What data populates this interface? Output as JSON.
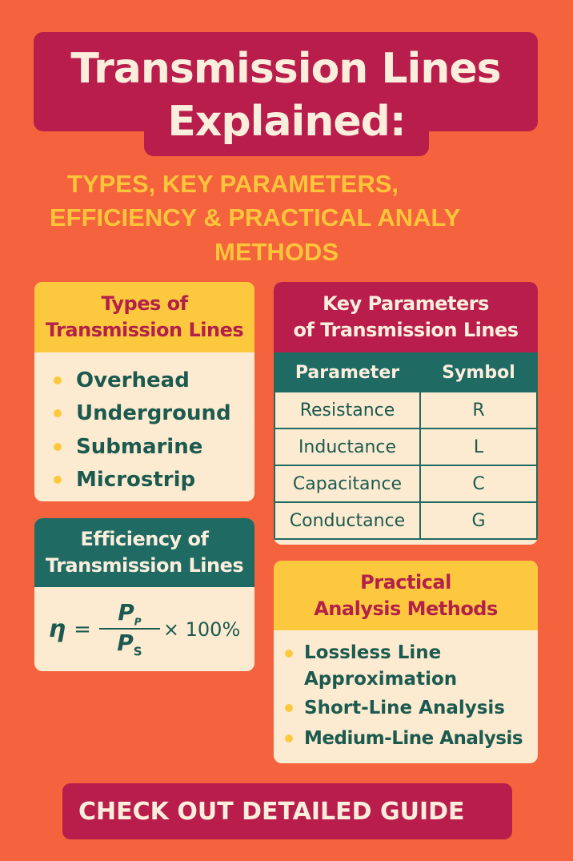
{
  "title": {
    "line1": "Transmission Lines",
    "line2": "Explained:"
  },
  "subtitle": {
    "line1": "TYPES, KEY PARAMETERS,",
    "line2": "EFFICIENCY & PRACTICAL ANALY",
    "line3": "METHODS"
  },
  "types": {
    "heading_line1": "Types of",
    "heading_line2": "Transmission Lines",
    "items": [
      "Overhead",
      "Underground",
      "Submarine",
      "Microstrip"
    ]
  },
  "parameters": {
    "heading_line1": "Key Parameters",
    "heading_line2": "of Transmission Lines",
    "columns": [
      "Parameter",
      "Symbol"
    ],
    "rows": [
      [
        "Resistance",
        "R"
      ],
      [
        "Inductance",
        "L"
      ],
      [
        "Capacitance",
        "C"
      ],
      [
        "Conductance",
        "G"
      ]
    ]
  },
  "efficiency": {
    "heading_line1": "Efficiency of",
    "heading_line2": "Transmission Lines",
    "formula": {
      "lhs": "η",
      "equals": "=",
      "numerator": "P",
      "numerator_sub": "P",
      "denominator": "P",
      "denominator_sub": "S",
      "multiplier": "× 100%"
    }
  },
  "methods": {
    "heading_line1": "Practical",
    "heading_line2": "Analysis Methods",
    "items": [
      "Lossless Line Approximation",
      "Short-Line Analysis",
      "Medium-Line Analysis"
    ]
  },
  "cta": {
    "label": "CHECK OUT DETAILED GUIDE"
  },
  "colors": {
    "background": "#f4623e",
    "maroon": "#b81d4b",
    "yellow": "#fcc93e",
    "teal": "#1f6a62",
    "cream": "#fdebd1"
  }
}
